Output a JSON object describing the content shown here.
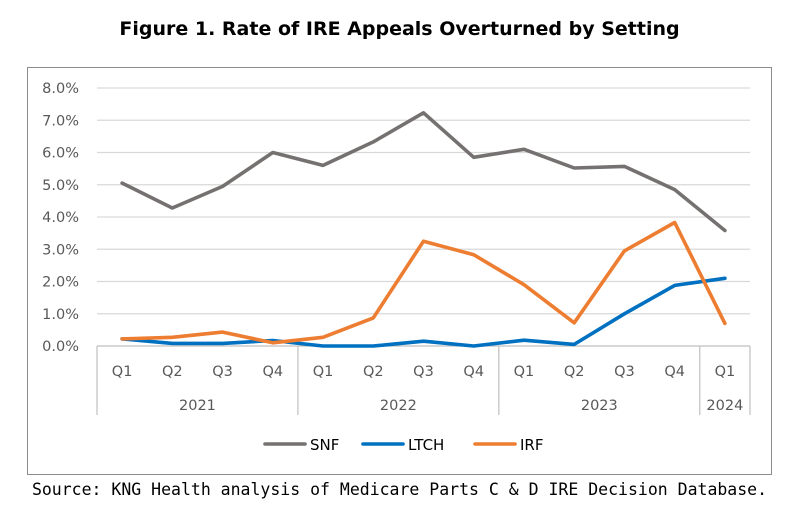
{
  "title": "Figure 1. Rate of IRE Appeals Overturned by Setting",
  "source": "Source: KNG Health analysis of Medicare Parts C & D IRE Decision Database.",
  "chart_data": {
    "type": "line",
    "categories": [
      "Q1",
      "Q2",
      "Q3",
      "Q4",
      "Q1",
      "Q2",
      "Q3",
      "Q4",
      "Q1",
      "Q2",
      "Q3",
      "Q4",
      "Q1"
    ],
    "category_groups": [
      {
        "label": "2021",
        "count": 4
      },
      {
        "label": "2022",
        "count": 4
      },
      {
        "label": "2023",
        "count": 4
      },
      {
        "label": "2024",
        "count": 1
      }
    ],
    "ylim": [
      0,
      8
    ],
    "yticks": [
      0,
      1,
      2,
      3,
      4,
      5,
      6,
      7,
      8
    ],
    "ytick_labels": [
      "0.0%",
      "1.0%",
      "2.0%",
      "3.0%",
      "4.0%",
      "5.0%",
      "6.0%",
      "7.0%",
      "8.0%"
    ],
    "grid": true,
    "legend": "bottom",
    "series": [
      {
        "name": "SNF",
        "color": "#767171",
        "values": [
          5.05,
          4.28,
          4.95,
          6.0,
          5.6,
          6.33,
          7.23,
          5.85,
          6.1,
          5.52,
          5.57,
          4.85,
          3.58
        ]
      },
      {
        "name": "LTCH",
        "color": "#0070C0",
        "values": [
          0.22,
          0.08,
          0.08,
          0.17,
          0.0,
          0.0,
          0.15,
          0.0,
          0.18,
          0.05,
          1.0,
          1.88,
          2.1
        ]
      },
      {
        "name": "IRF",
        "color": "#ED7D31",
        "values": [
          0.22,
          0.27,
          0.43,
          0.1,
          0.27,
          0.87,
          3.25,
          2.83,
          1.9,
          0.72,
          2.95,
          3.83,
          0.7
        ]
      }
    ]
  }
}
